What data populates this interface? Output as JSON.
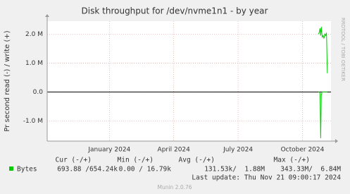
{
  "chart_data": {
    "type": "line",
    "title": "Disk throughput for /dev/nvme1n1 - by year",
    "y_label": "Pr second read (-) / write (+)",
    "side_text": "RRDTOOL / TOBI OETIKER",
    "footer": "Munin 2.0.76",
    "last_update": "Last update: Thu Nov 21 09:00:17 2024",
    "xlim": [
      -2.9,
      10.33
    ],
    "xticks": [
      {
        "value": 0,
        "label": "January 2024"
      },
      {
        "value": 3,
        "label": "April 2024"
      },
      {
        "value": 6,
        "label": "July 2024"
      },
      {
        "value": 9,
        "label": "October 2024"
      }
    ],
    "ylim": [
      -1700000,
      2450000
    ],
    "yticks": [
      {
        "value": -1000000,
        "label": "-1.0 M"
      },
      {
        "value": 0,
        "label": "0.0"
      },
      {
        "value": 1000000,
        "label": "1.0 M"
      },
      {
        "value": 2000000,
        "label": "2.0 M"
      }
    ],
    "grid": true,
    "series": [
      {
        "name": "Bytes",
        "color": "#00cc00",
        "x": [
          9.74,
          9.78,
          9.82,
          9.85,
          9.88,
          9.92,
          9.96,
          10.0,
          10.04,
          10.08,
          10.12,
          10.16
        ],
        "values": [
          2000000,
          2050000,
          2200000,
          1950000,
          2250000,
          1900000,
          1950000,
          1850000,
          2000000,
          1950000,
          2050000,
          650000
        ],
        "read_values": [
          0,
          0,
          -50000,
          -1600000,
          -100000,
          0,
          0,
          0,
          0,
          0,
          0,
          0
        ]
      }
    ],
    "stats": {
      "columns": [
        "Cur (-/+)",
        "Min (-/+)",
        "Avg (-/+)",
        "Max (-/+)"
      ],
      "row": [
        "693.88 /654.24k",
        "0.00 / 16.79k",
        "131.53k/  1.88M",
        "343.33M/  6.84M"
      ]
    }
  }
}
